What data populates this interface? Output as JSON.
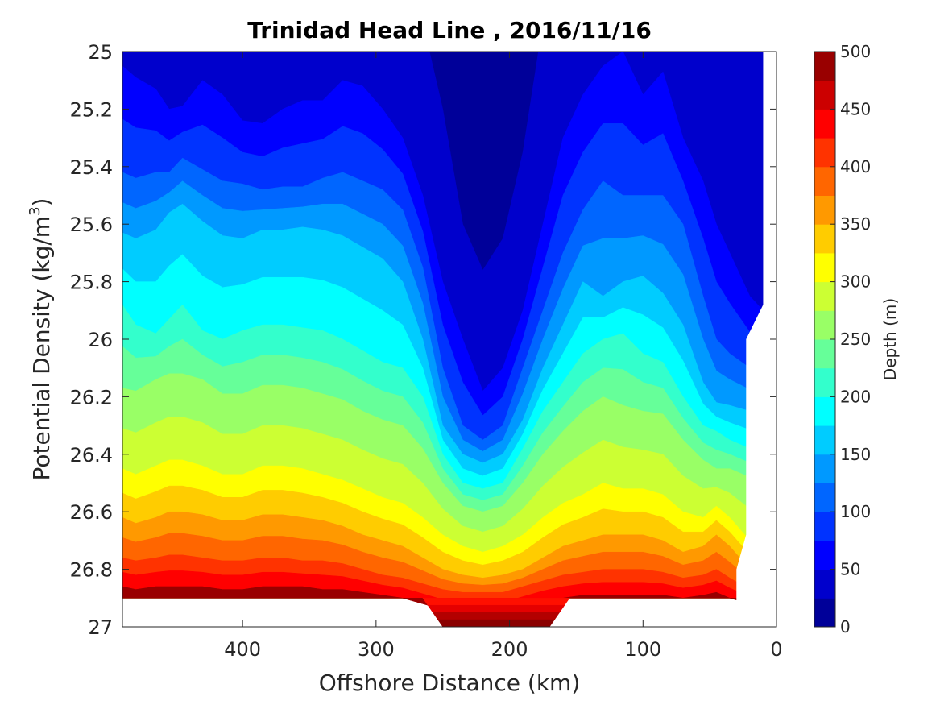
{
  "chart_data": {
    "type": "contourf",
    "title": "Trinidad Head Line , 2016/11/16",
    "xlabel": "Offshore Distance (km)",
    "ylabel_main": "Potential Density (kg/m",
    "ylabel_sup": "3",
    "ylabel_close": ")",
    "xlim": [
      490,
      0
    ],
    "x_reversed": true,
    "ylim": [
      25,
      27
    ],
    "y_reversed": true,
    "x_ticks": [
      400,
      300,
      200,
      100,
      0
    ],
    "x_tick_labels": [
      "400",
      "300",
      "200",
      "100",
      "0"
    ],
    "y_ticks": [
      25,
      25.2,
      25.4,
      25.6,
      25.8,
      26,
      26.2,
      26.4,
      26.6,
      26.8,
      27
    ],
    "y_tick_labels": [
      "25",
      "25.2",
      "25.4",
      "25.6",
      "25.8",
      "26",
      "26.2",
      "26.4",
      "26.6",
      "26.8",
      "27"
    ],
    "colorbar": {
      "label": "Depth (m)",
      "min": 0,
      "max": 500,
      "ticks": [
        0,
        50,
        100,
        150,
        200,
        250,
        300,
        350,
        400,
        450,
        500
      ],
      "tick_labels": [
        "0",
        "50",
        "100",
        "150",
        "200",
        "250",
        "300",
        "350",
        "400",
        "450",
        "500"
      ],
      "levels": [
        0,
        25,
        50,
        75,
        100,
        125,
        150,
        175,
        200,
        225,
        250,
        275,
        300,
        325,
        350,
        375,
        400,
        425,
        450,
        475,
        500
      ],
      "colormap": "jet"
    },
    "depth_contour_density": {
      "x": [
        490,
        480,
        465,
        455,
        445,
        430,
        415,
        400,
        385,
        370,
        355,
        340,
        325,
        310,
        295,
        280,
        265,
        250,
        235,
        220,
        205,
        190,
        175,
        160,
        145,
        130,
        115,
        100,
        85,
        70,
        55,
        45,
        35,
        20,
        10
      ],
      "depth_levels": [
        25,
        50,
        100,
        150,
        200,
        250,
        300,
        350,
        400,
        450
      ],
      "density_at_level": [
        [
          24.9,
          24.9,
          24.9,
          24.9,
          24.9,
          24.9,
          24.9,
          24.9,
          24.9,
          24.9,
          24.9,
          24.9,
          24.9,
          24.9,
          24.9,
          24.9,
          24.9,
          25.2,
          25.6,
          25.76,
          25.65,
          25.35,
          24.9,
          24.9,
          24.9,
          24.9,
          24.9,
          24.9,
          24.9,
          24.9,
          24.9,
          24.9,
          24.9,
          24.9,
          25.0
        ],
        [
          25.05,
          25.09,
          25.13,
          25.2,
          25.19,
          25.1,
          25.15,
          25.24,
          25.25,
          25.2,
          25.17,
          25.17,
          25.1,
          25.12,
          25.2,
          25.3,
          25.5,
          25.8,
          26.0,
          26.18,
          26.1,
          25.9,
          25.6,
          25.3,
          25.15,
          25.05,
          25.0,
          25.15,
          25.07,
          25.3,
          25.45,
          25.6,
          25.7,
          25.85,
          25.9
        ],
        [
          25.42,
          25.44,
          25.42,
          25.42,
          25.37,
          25.41,
          25.45,
          25.46,
          25.48,
          25.47,
          25.47,
          25.44,
          25.42,
          25.45,
          25.48,
          25.55,
          25.75,
          26.1,
          26.3,
          26.35,
          26.3,
          26.1,
          25.9,
          25.7,
          25.55,
          25.45,
          25.5,
          25.5,
          25.5,
          25.6,
          25.85,
          26.0,
          26.05,
          26.1,
          26.1
        ],
        [
          25.63,
          25.65,
          25.62,
          25.56,
          25.53,
          25.59,
          25.64,
          25.65,
          25.62,
          25.62,
          25.61,
          25.62,
          25.64,
          25.68,
          25.72,
          25.8,
          26.0,
          26.3,
          26.4,
          26.43,
          26.4,
          26.28,
          26.1,
          25.95,
          25.8,
          25.85,
          25.8,
          25.78,
          25.84,
          25.95,
          26.15,
          26.22,
          26.23,
          26.25,
          26.25
        ],
        [
          25.88,
          25.95,
          25.98,
          25.93,
          25.88,
          25.97,
          26.0,
          25.97,
          25.95,
          25.95,
          25.96,
          25.97,
          26.0,
          26.04,
          26.08,
          26.1,
          26.2,
          26.4,
          26.5,
          26.52,
          26.5,
          26.38,
          26.25,
          26.15,
          26.05,
          26.0,
          25.98,
          26.05,
          26.08,
          26.2,
          26.3,
          26.32,
          26.35,
          26.38,
          26.38
        ],
        [
          26.17,
          26.18,
          26.14,
          26.12,
          26.12,
          26.14,
          26.19,
          26.19,
          26.16,
          26.16,
          26.17,
          26.19,
          26.21,
          26.25,
          26.28,
          26.3,
          26.38,
          26.5,
          26.58,
          26.6,
          26.58,
          26.5,
          26.4,
          26.32,
          26.25,
          26.2,
          26.23,
          26.25,
          26.26,
          26.35,
          26.42,
          26.45,
          26.45,
          26.48,
          26.48
        ],
        [
          26.45,
          26.47,
          26.44,
          26.42,
          26.42,
          26.44,
          26.47,
          26.47,
          26.44,
          26.44,
          26.45,
          26.47,
          26.49,
          26.52,
          26.55,
          26.57,
          26.62,
          26.68,
          26.72,
          26.74,
          26.72,
          26.68,
          26.62,
          26.57,
          26.54,
          26.5,
          26.52,
          26.52,
          26.54,
          26.6,
          26.62,
          26.58,
          26.62,
          26.7,
          26.72
        ],
        [
          26.62,
          26.64,
          26.62,
          26.6,
          26.6,
          26.61,
          26.63,
          26.63,
          26.61,
          26.61,
          26.62,
          26.63,
          26.65,
          26.68,
          26.7,
          26.72,
          26.76,
          26.8,
          26.82,
          26.83,
          26.82,
          26.8,
          26.76,
          26.72,
          26.7,
          26.68,
          26.68,
          26.68,
          26.7,
          26.74,
          26.72,
          26.68,
          26.72,
          26.8,
          26.8
        ],
        [
          26.76,
          26.77,
          26.76,
          26.75,
          26.75,
          26.76,
          26.77,
          26.77,
          26.76,
          26.76,
          26.77,
          26.77,
          26.78,
          26.8,
          26.82,
          26.83,
          26.85,
          26.87,
          26.88,
          26.88,
          26.88,
          26.86,
          26.84,
          26.82,
          26.81,
          26.8,
          26.8,
          26.8,
          26.81,
          26.83,
          26.82,
          26.8,
          26.83,
          26.87,
          26.87
        ],
        [
          26.86,
          26.87,
          26.86,
          26.86,
          26.86,
          26.86,
          26.87,
          26.87,
          26.86,
          26.86,
          26.86,
          26.87,
          26.87,
          26.88,
          26.89,
          26.9,
          26.92,
          26.94,
          26.95,
          26.95,
          26.95,
          26.93,
          26.91,
          26.9,
          26.89,
          26.89,
          26.89,
          26.89,
          26.89,
          26.9,
          26.89,
          26.88,
          26.9,
          26.92,
          26.92
        ]
      ]
    },
    "data_extent": {
      "bottom_density": 26.9,
      "deep_region_x_range": [
        250,
        170
      ],
      "deep_region_bottom_density": 27.0,
      "right_edge_x_shallow": 10,
      "right_edge_x_deep": 30
    }
  }
}
